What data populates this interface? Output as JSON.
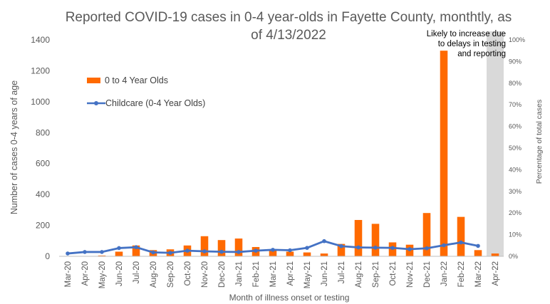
{
  "chart_data": {
    "type": "bar",
    "title": "Reported COVID-19 cases in 0-4 year-olds in Fayette County, monthtly, as of 4/13/2022",
    "title_line1": "Reported COVID-19 cases in 0-4 year-olds in Fayette County, monthtly, as",
    "title_line2": "of 4/13/2022",
    "xlabel": "Month of illness onset or testing",
    "ylabel": "Number of cases 0-4 years of age",
    "y2label": "Percentage of total cases",
    "categories": [
      "Mar-20",
      "Apr-20",
      "May-20",
      "Jun-20",
      "Jul-20",
      "Aug-20",
      "Sep-20",
      "Oct-20",
      "Nov-20",
      "Dec-20",
      "Jan-21",
      "Feb-21",
      "Mar-21",
      "Apr-21",
      "May-21",
      "Jun-21",
      "Jul-21",
      "Aug-21",
      "Sep-21",
      "Oct-21",
      "Nov-21",
      "Dec-21",
      "Jan-22",
      "Feb-22",
      "Mar-22",
      "Apr-22"
    ],
    "ylim": [
      0,
      1400
    ],
    "yticks": [
      "0",
      "200",
      "400",
      "600",
      "800",
      "1000",
      "1200",
      "1400"
    ],
    "y2lim": [
      0,
      100
    ],
    "y2ticks": [
      "0%",
      "10%",
      "20%",
      "30%",
      "40%",
      "50%",
      "60%",
      "70%",
      "80%",
      "90%",
      "100%"
    ],
    "series": [
      {
        "name": "0 to 4 Year Olds",
        "type": "bar",
        "axis": "left",
        "color": "#FF6A00",
        "values": [
          1,
          1,
          5,
          30,
          70,
          40,
          45,
          70,
          130,
          105,
          115,
          60,
          40,
          30,
          25,
          18,
          80,
          235,
          210,
          90,
          75,
          280,
          1330,
          255,
          40,
          18
        ]
      },
      {
        "name": "Childcare (0-4 Year Olds)",
        "type": "line",
        "axis": "right",
        "color": "#4472C4",
        "values": [
          1.3,
          2.0,
          2.0,
          3.8,
          4.2,
          1.8,
          1.6,
          2.6,
          2.3,
          2.1,
          2.0,
          2.6,
          3.0,
          2.8,
          3.9,
          7.0,
          4.7,
          4.1,
          4.0,
          3.9,
          3.3,
          3.7,
          5.1,
          6.4,
          4.8,
          null
        ]
      }
    ],
    "shaded_category": "Apr-22",
    "shade_color": "#D9D9D9",
    "annotation": [
      "Likely to increase due",
      "to delays in testing",
      "and reporting"
    ],
    "grid": false,
    "legend_position": "upper-left"
  }
}
